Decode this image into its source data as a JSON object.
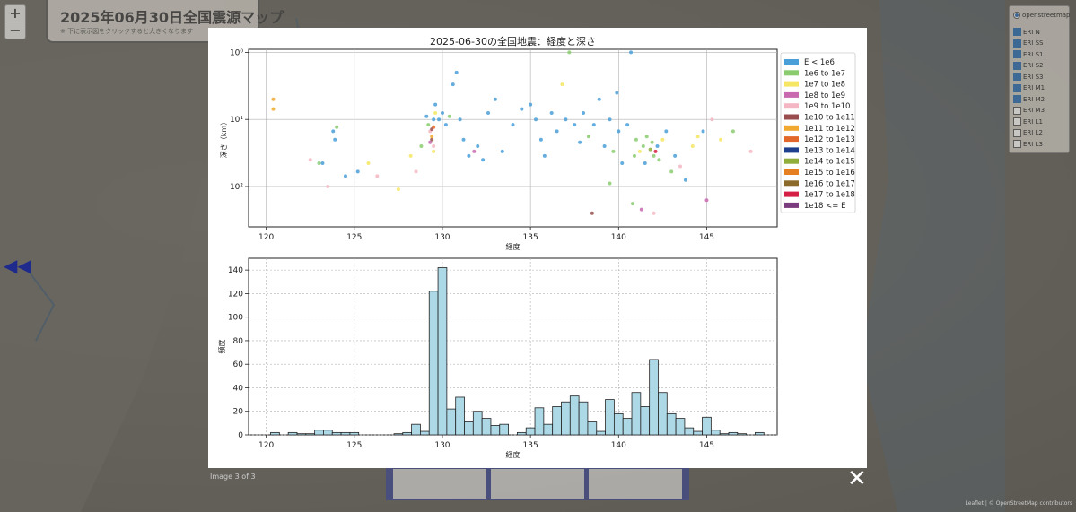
{
  "map": {
    "title": "2025年06月30日全国震源マップ",
    "subtitle": "※ 下に表示図をクリックすると大きくなります",
    "zoom_in": "+",
    "zoom_out": "−",
    "attribution": "Leaflet | © OpenStreetMap contributors",
    "layers": [
      {
        "label": "openstreetmap",
        "type": "radio",
        "checked": true
      },
      {
        "label": "ERI N",
        "type": "checkbox",
        "checked": true
      },
      {
        "label": "ERI SS",
        "type": "checkbox",
        "checked": true
      },
      {
        "label": "ERI S1",
        "type": "checkbox",
        "checked": true
      },
      {
        "label": "ERI S2",
        "type": "checkbox",
        "checked": true
      },
      {
        "label": "ERI S3",
        "type": "checkbox",
        "checked": true
      },
      {
        "label": "ERI M1",
        "type": "checkbox",
        "checked": true
      },
      {
        "label": "ERI M2",
        "type": "checkbox",
        "checked": true
      },
      {
        "label": "ERI M3",
        "type": "checkbox",
        "checked": false
      },
      {
        "label": "ERI L1",
        "type": "checkbox",
        "checked": false
      },
      {
        "label": "ERI L2",
        "type": "checkbox",
        "checked": false
      },
      {
        "label": "ERI L3",
        "type": "checkbox",
        "checked": false
      }
    ]
  },
  "lightbox": {
    "caption": "Image 3 of 3",
    "close_glyph": "✕",
    "prev_glyph": "◀◀"
  },
  "colors": {
    "hist_fill": "#add8e6",
    "hist_edge": "#222222",
    "modal_bg": "#ffffff",
    "grid": "#b0b0b0"
  },
  "chart_data": [
    {
      "type": "scatter",
      "title": "2025-06-30の全国地震：経度と深さ",
      "xlabel": "経度",
      "ylabel": "深さ（km）",
      "xlim": [
        119,
        149
      ],
      "ylim": [
        400,
        0.9
      ],
      "yscale": "log",
      "y_inverted": true,
      "grid": true,
      "x_ticks": [
        120,
        125,
        130,
        135,
        140,
        145
      ],
      "y_ticks": [
        {
          "value": 1,
          "label": "10⁰"
        },
        {
          "value": 10,
          "label": "10¹"
        },
        {
          "value": 100,
          "label": "10²"
        }
      ],
      "legend_position": "right",
      "legend": [
        {
          "label": "E < 1e6",
          "color": "#4a9fd8"
        },
        {
          "label": "1e6 to 1e7",
          "color": "#88cc6e"
        },
        {
          "label": "1e7 to 1e8",
          "color": "#f5e663"
        },
        {
          "label": "1e8 to 1e9",
          "color": "#c96ab0"
        },
        {
          "label": "1e9 to 1e10",
          "color": "#f4b6c2"
        },
        {
          "label": "1e10 to 1e11",
          "color": "#9a4d4d"
        },
        {
          "label": "1e11 to 1e12",
          "color": "#f0a830"
        },
        {
          "label": "1e12 to 1e13",
          "color": "#e2672a"
        },
        {
          "label": "1e13 to 1e14",
          "color": "#1f3f8c"
        },
        {
          "label": "1e14 to 1e15",
          "color": "#8fae3c"
        },
        {
          "label": "1e15 to 1e16",
          "color": "#e67e22"
        },
        {
          "label": "1e16 to 1e17",
          "color": "#8b6a2c"
        },
        {
          "label": "1e17 to 1e18",
          "color": "#d61f45"
        },
        {
          "label": "1e18 <= E",
          "color": "#7a3c7e"
        }
      ],
      "points": [
        {
          "x": 120.4,
          "y": 5,
          "c": 6
        },
        {
          "x": 120.4,
          "y": 7,
          "c": 6
        },
        {
          "x": 122.5,
          "y": 40,
          "c": 4
        },
        {
          "x": 123.0,
          "y": 45,
          "c": 1
        },
        {
          "x": 123.2,
          "y": 45,
          "c": 0
        },
        {
          "x": 123.5,
          "y": 100,
          "c": 4
        },
        {
          "x": 123.8,
          "y": 15,
          "c": 0
        },
        {
          "x": 123.9,
          "y": 20,
          "c": 0
        },
        {
          "x": 124.0,
          "y": 13,
          "c": 1
        },
        {
          "x": 124.5,
          "y": 70,
          "c": 0
        },
        {
          "x": 125.2,
          "y": 60,
          "c": 0
        },
        {
          "x": 125.8,
          "y": 45,
          "c": 2
        },
        {
          "x": 126.3,
          "y": 70,
          "c": 4
        },
        {
          "x": 127.5,
          "y": 110,
          "c": 2
        },
        {
          "x": 128.2,
          "y": 35,
          "c": 2
        },
        {
          "x": 128.5,
          "y": 60,
          "c": 4
        },
        {
          "x": 128.8,
          "y": 25,
          "c": 1
        },
        {
          "x": 129.1,
          "y": 9,
          "c": 0
        },
        {
          "x": 129.2,
          "y": 12,
          "c": 1
        },
        {
          "x": 129.3,
          "y": 15,
          "c": 4
        },
        {
          "x": 129.4,
          "y": 20,
          "c": 5
        },
        {
          "x": 129.4,
          "y": 18,
          "c": 6
        },
        {
          "x": 129.5,
          "y": 25,
          "c": 4
        },
        {
          "x": 129.5,
          "y": 10,
          "c": 0
        },
        {
          "x": 129.6,
          "y": 8,
          "c": 2
        },
        {
          "x": 129.5,
          "y": 13,
          "c": 7
        },
        {
          "x": 129.4,
          "y": 14,
          "c": 5
        },
        {
          "x": 129.3,
          "y": 22,
          "c": 3
        },
        {
          "x": 129.5,
          "y": 30,
          "c": 2
        },
        {
          "x": 129.6,
          "y": 6,
          "c": 0
        },
        {
          "x": 129.8,
          "y": 10,
          "c": 0
        },
        {
          "x": 130.0,
          "y": 8,
          "c": 0
        },
        {
          "x": 130.2,
          "y": 12,
          "c": 0
        },
        {
          "x": 130.4,
          "y": 9,
          "c": 1
        },
        {
          "x": 130.6,
          "y": 3,
          "c": 0
        },
        {
          "x": 130.8,
          "y": 2,
          "c": 0
        },
        {
          "x": 131.0,
          "y": 10,
          "c": 0
        },
        {
          "x": 131.2,
          "y": 20,
          "c": 0
        },
        {
          "x": 131.5,
          "y": 35,
          "c": 0
        },
        {
          "x": 131.8,
          "y": 30,
          "c": 3
        },
        {
          "x": 132.0,
          "y": 25,
          "c": 0
        },
        {
          "x": 132.3,
          "y": 40,
          "c": 0
        },
        {
          "x": 132.6,
          "y": 8,
          "c": 0
        },
        {
          "x": 133.0,
          "y": 5,
          "c": 0
        },
        {
          "x": 133.4,
          "y": 30,
          "c": 0
        },
        {
          "x": 134.0,
          "y": 12,
          "c": 0
        },
        {
          "x": 134.5,
          "y": 7,
          "c": 0
        },
        {
          "x": 135.0,
          "y": 6,
          "c": 0
        },
        {
          "x": 135.3,
          "y": 10,
          "c": 0
        },
        {
          "x": 135.6,
          "y": 20,
          "c": 0
        },
        {
          "x": 135.8,
          "y": 35,
          "c": 0
        },
        {
          "x": 136.2,
          "y": 8,
          "c": 0
        },
        {
          "x": 136.5,
          "y": 15,
          "c": 0
        },
        {
          "x": 136.8,
          "y": 3,
          "c": 2
        },
        {
          "x": 137.0,
          "y": 10,
          "c": 0
        },
        {
          "x": 137.2,
          "y": 1,
          "c": 1
        },
        {
          "x": 137.5,
          "y": 12,
          "c": 0
        },
        {
          "x": 137.8,
          "y": 22,
          "c": 0
        },
        {
          "x": 138.0,
          "y": 8,
          "c": 0
        },
        {
          "x": 138.3,
          "y": 18,
          "c": 1
        },
        {
          "x": 138.6,
          "y": 12,
          "c": 0
        },
        {
          "x": 138.9,
          "y": 5,
          "c": 0
        },
        {
          "x": 139.2,
          "y": 25,
          "c": 0
        },
        {
          "x": 139.5,
          "y": 10,
          "c": 0
        },
        {
          "x": 139.7,
          "y": 30,
          "c": 1
        },
        {
          "x": 139.9,
          "y": 4,
          "c": 0
        },
        {
          "x": 138.5,
          "y": 250,
          "c": 5
        },
        {
          "x": 139.5,
          "y": 90,
          "c": 1
        },
        {
          "x": 140.0,
          "y": 15,
          "c": 0
        },
        {
          "x": 140.2,
          "y": 45,
          "c": 0
        },
        {
          "x": 140.5,
          "y": 12,
          "c": 0
        },
        {
          "x": 140.7,
          "y": 1,
          "c": 0
        },
        {
          "x": 140.9,
          "y": 35,
          "c": 1
        },
        {
          "x": 141.0,
          "y": 20,
          "c": 1
        },
        {
          "x": 141.2,
          "y": 30,
          "c": 2
        },
        {
          "x": 141.4,
          "y": 25,
          "c": 1
        },
        {
          "x": 141.5,
          "y": 45,
          "c": 0
        },
        {
          "x": 141.6,
          "y": 18,
          "c": 1
        },
        {
          "x": 141.8,
          "y": 28,
          "c": 9
        },
        {
          "x": 141.9,
          "y": 22,
          "c": 1
        },
        {
          "x": 142.0,
          "y": 35,
          "c": 1
        },
        {
          "x": 142.1,
          "y": 30,
          "c": 12
        },
        {
          "x": 142.2,
          "y": 25,
          "c": 0
        },
        {
          "x": 142.3,
          "y": 40,
          "c": 1
        },
        {
          "x": 142.5,
          "y": 20,
          "c": 2
        },
        {
          "x": 142.7,
          "y": 15,
          "c": 0
        },
        {
          "x": 143.0,
          "y": 60,
          "c": 1
        },
        {
          "x": 143.2,
          "y": 35,
          "c": 0
        },
        {
          "x": 143.5,
          "y": 50,
          "c": 4
        },
        {
          "x": 143.8,
          "y": 80,
          "c": 0
        },
        {
          "x": 144.2,
          "y": 25,
          "c": 2
        },
        {
          "x": 144.5,
          "y": 18,
          "c": 2
        },
        {
          "x": 144.8,
          "y": 15,
          "c": 0
        },
        {
          "x": 145.0,
          "y": 160,
          "c": 3
        },
        {
          "x": 145.3,
          "y": 10,
          "c": 4
        },
        {
          "x": 145.8,
          "y": 20,
          "c": 2
        },
        {
          "x": 146.5,
          "y": 15,
          "c": 1
        },
        {
          "x": 147.5,
          "y": 30,
          "c": 4
        },
        {
          "x": 141.3,
          "y": 220,
          "c": 3
        },
        {
          "x": 142.0,
          "y": 250,
          "c": 4
        },
        {
          "x": 140.8,
          "y": 180,
          "c": 1
        }
      ]
    },
    {
      "type": "bar",
      "title": "",
      "xlabel": "経度",
      "ylabel": "頻度",
      "xlim": [
        119,
        149
      ],
      "ylim": [
        0,
        150
      ],
      "grid": true,
      "x_ticks": [
        120,
        125,
        130,
        135,
        140,
        145
      ],
      "y_ticks": [
        0,
        20,
        40,
        60,
        80,
        100,
        120,
        140
      ],
      "bin_width": 0.5,
      "bins": [
        {
          "x": 120.5,
          "value": 2
        },
        {
          "x": 121.0,
          "value": 0
        },
        {
          "x": 121.5,
          "value": 2
        },
        {
          "x": 122.0,
          "value": 1
        },
        {
          "x": 122.5,
          "value": 1
        },
        {
          "x": 123.0,
          "value": 4
        },
        {
          "x": 123.5,
          "value": 4
        },
        {
          "x": 124.0,
          "value": 2
        },
        {
          "x": 124.5,
          "value": 2
        },
        {
          "x": 125.0,
          "value": 2
        },
        {
          "x": 127.5,
          "value": 1
        },
        {
          "x": 128.0,
          "value": 2
        },
        {
          "x": 128.5,
          "value": 9
        },
        {
          "x": 129.0,
          "value": 3
        },
        {
          "x": 129.5,
          "value": 122
        },
        {
          "x": 130.0,
          "value": 142
        },
        {
          "x": 130.5,
          "value": 22
        },
        {
          "x": 131.0,
          "value": 32
        },
        {
          "x": 131.5,
          "value": 11
        },
        {
          "x": 132.0,
          "value": 20
        },
        {
          "x": 132.5,
          "value": 14
        },
        {
          "x": 133.0,
          "value": 8
        },
        {
          "x": 133.5,
          "value": 9
        },
        {
          "x": 134.5,
          "value": 2
        },
        {
          "x": 135.0,
          "value": 6
        },
        {
          "x": 135.5,
          "value": 23
        },
        {
          "x": 136.0,
          "value": 9
        },
        {
          "x": 136.5,
          "value": 24
        },
        {
          "x": 137.0,
          "value": 28
        },
        {
          "x": 137.5,
          "value": 33
        },
        {
          "x": 138.0,
          "value": 28
        },
        {
          "x": 138.5,
          "value": 11
        },
        {
          "x": 139.0,
          "value": 3
        },
        {
          "x": 139.5,
          "value": 30
        },
        {
          "x": 140.0,
          "value": 18
        },
        {
          "x": 140.5,
          "value": 14
        },
        {
          "x": 141.0,
          "value": 36
        },
        {
          "x": 141.5,
          "value": 24
        },
        {
          "x": 142.0,
          "value": 64
        },
        {
          "x": 142.5,
          "value": 36
        },
        {
          "x": 143.0,
          "value": 18
        },
        {
          "x": 143.5,
          "value": 14
        },
        {
          "x": 144.0,
          "value": 6
        },
        {
          "x": 144.5,
          "value": 3
        },
        {
          "x": 145.0,
          "value": 15
        },
        {
          "x": 145.5,
          "value": 4
        },
        {
          "x": 146.0,
          "value": 1
        },
        {
          "x": 146.5,
          "value": 2
        },
        {
          "x": 147.0,
          "value": 1
        },
        {
          "x": 148.0,
          "value": 2
        }
      ]
    }
  ]
}
